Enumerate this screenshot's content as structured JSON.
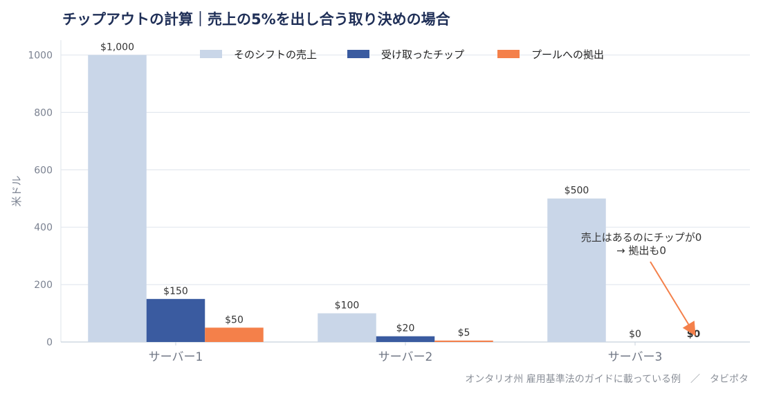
{
  "title": "チップアウトの計算｜売上の5%を出し合う取り決めの場合",
  "source": "オンタリオ州 雇用基準法のガイドに載っている例　／　タビポタ",
  "chart_data": {
    "type": "bar",
    "categories": [
      "サーバー1",
      "サーバー2",
      "サーバー3"
    ],
    "series": [
      {
        "name": "そのシフトの売上",
        "values": [
          1000,
          100,
          500
        ],
        "labels": [
          "$1,000",
          "$100",
          "$500"
        ],
        "color": "#c9d6e8"
      },
      {
        "name": "受け取ったチップ",
        "values": [
          150,
          20,
          0
        ],
        "labels": [
          "$150",
          "$20",
          "$0"
        ],
        "color": "#3a5ba0"
      },
      {
        "name": "プールへの拠出",
        "values": [
          50,
          5,
          0
        ],
        "labels": [
          "$50",
          "$5",
          "$0"
        ],
        "color": "#f4804a"
      }
    ],
    "ylabel": "米ドル",
    "ylim": [
      0,
      1100
    ],
    "yticks": [
      0,
      200,
      400,
      600,
      800,
      1000
    ],
    "grid": true,
    "legend": "top-center",
    "annotation": {
      "lines": [
        "売上はあるのにチップが0",
        "→ 拠出も0"
      ],
      "category": "サーバー3",
      "series": "プールへの拠出",
      "color": "#f4804a"
    }
  }
}
